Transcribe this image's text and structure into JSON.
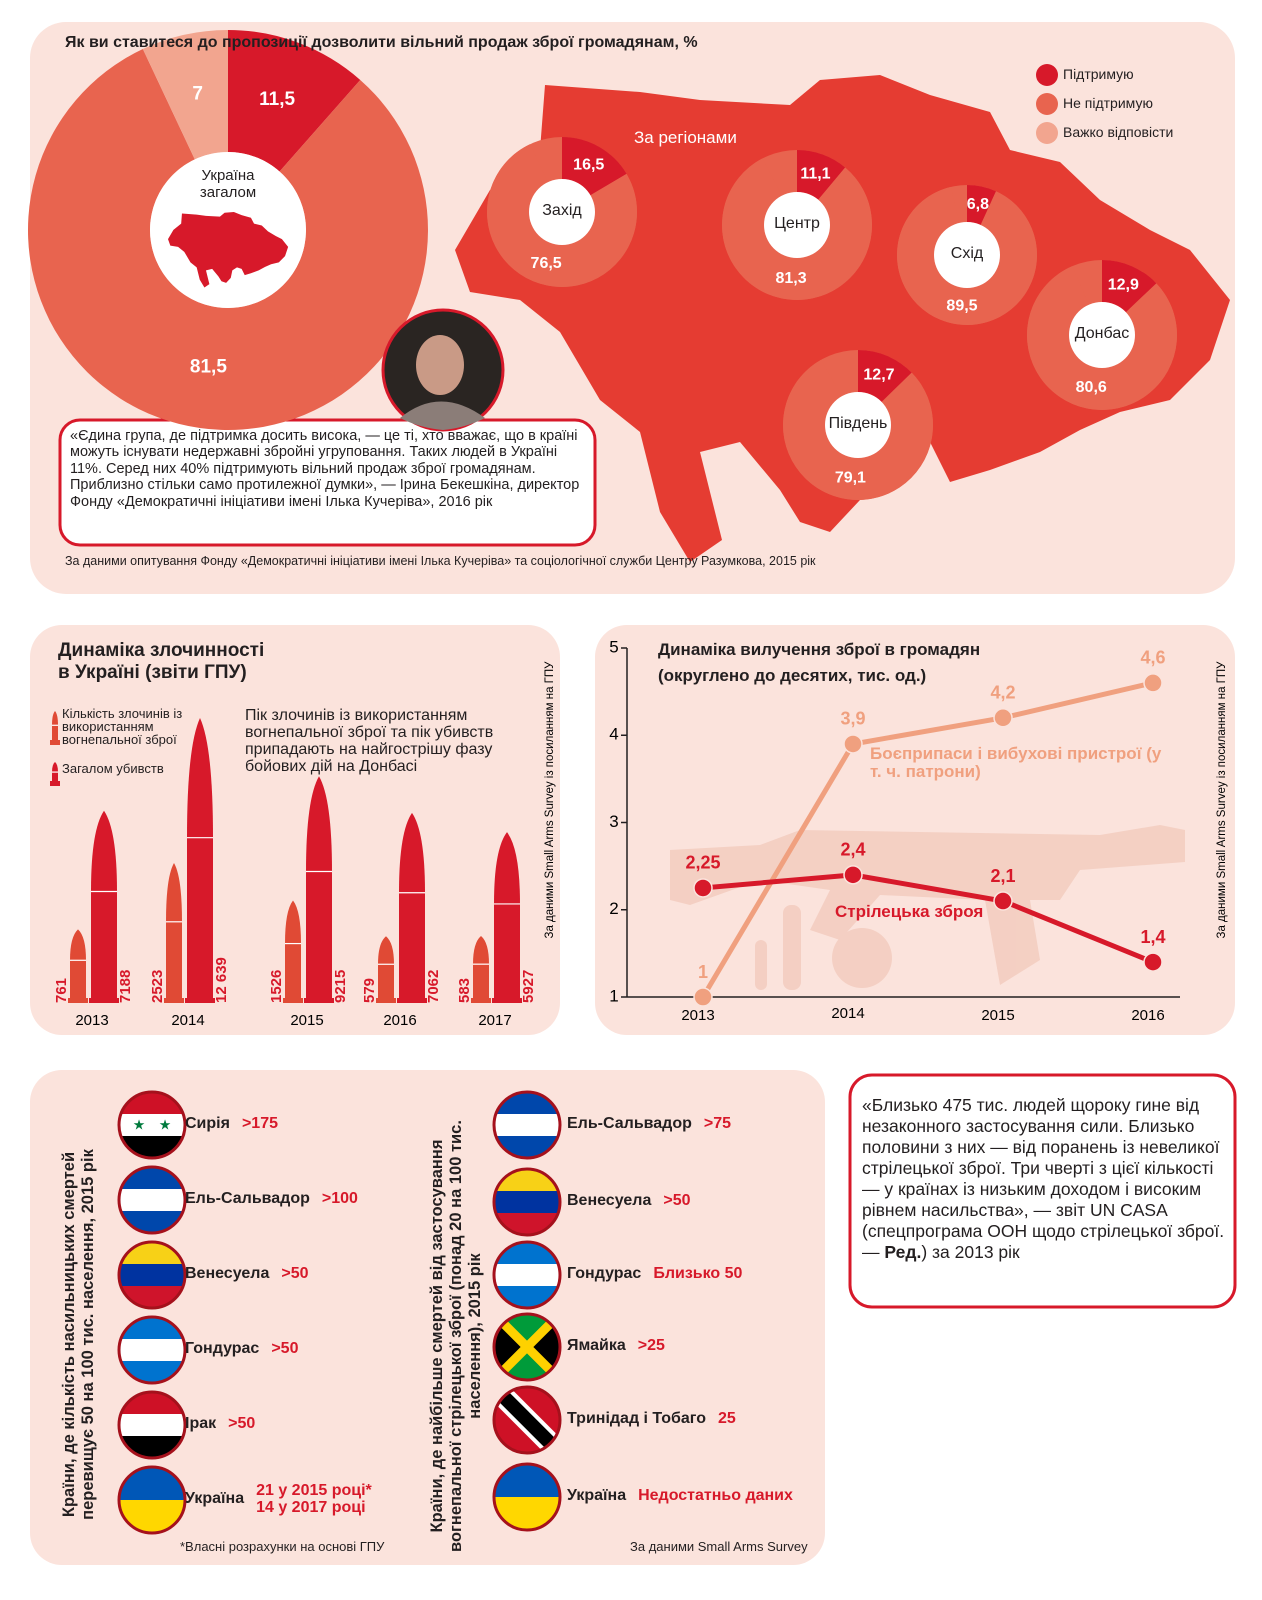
{
  "chart_data": [
    {
      "type": "donut",
      "title": "Як ви ставитеся до пропозиції дозволити вільний продаж зброї громадянам, %",
      "categories": [
        "Підтримую",
        "Не підтримую",
        "Важко відповісти"
      ],
      "colors": [
        "#d7192a",
        "#e8644f",
        "#f2a58f"
      ],
      "groups": [
        {
          "name": "Україна загалом",
          "values": [
            11.5,
            81.5,
            7
          ],
          "value_labels": [
            "11,5",
            "81,5",
            "7"
          ]
        }
      ],
      "note": "За даними опитування Фонду «Демократичні ініціативи імені Ілька Кучеріва» та соціологічної служби Центру Разумкова, 2015 рік"
    },
    {
      "type": "donut",
      "title": "За регіонами",
      "colors": [
        "#d7192a",
        "#e8644f"
      ],
      "groups": [
        {
          "name": "Захід",
          "values": [
            16.5,
            76.5
          ],
          "value_labels": [
            "16,5",
            "76,5"
          ]
        },
        {
          "name": "Центр",
          "values": [
            11.1,
            81.3
          ],
          "value_labels": [
            "11,1",
            "81,3"
          ]
        },
        {
          "name": "Схід",
          "values": [
            6.8,
            89.5
          ],
          "value_labels": [
            "6,8",
            "89,5"
          ]
        },
        {
          "name": "Донбас",
          "values": [
            12.9,
            80.6
          ],
          "value_labels": [
            "12,9",
            "80,6"
          ]
        },
        {
          "name": "Південь",
          "values": [
            12.7,
            79.1
          ],
          "value_labels": [
            "12,7",
            "79,1"
          ]
        }
      ]
    },
    {
      "type": "bullet",
      "title": "Динаміка злочинності в Україні (звіти ГПУ)",
      "categories": [
        "2013",
        "2014",
        "2015",
        "2016",
        "2017"
      ],
      "series": [
        {
          "name": "Кількість злочинів із використанням вогнепальної зброї",
          "color": "#e04a35",
          "values": [
            761,
            2523,
            1526,
            579,
            583
          ]
        },
        {
          "name": "Загалом убивств",
          "color": "#d7192a",
          "values": [
            7188,
            12639,
            9215,
            7062,
            5927
          ],
          "value_labels": [
            "7188",
            "12 639",
            "9215",
            "7062",
            "5927"
          ]
        }
      ],
      "annotation": "Пік злочинів із використанням вогнепальної зброї та пік убивств припадають на найгострішу фазу бойових дій на Донбасі",
      "source": "За даними  Small Arms Survey із посиланням на ГПУ"
    },
    {
      "type": "line",
      "title": "Динаміка вилучення зброї в громадян",
      "subtitle": "(округлено до десятих, тис. од.)",
      "categories": [
        "2013",
        "2014",
        "2015",
        "2016"
      ],
      "ylim": [
        1,
        5
      ],
      "yticks": [
        1,
        2,
        3,
        4,
        5
      ],
      "series": [
        {
          "name": "Боєприпаси і вибухові пристрої (у т. ч. патрони)",
          "color": "#f0a07f",
          "values": [
            1,
            3.9,
            4.2,
            4.6
          ],
          "value_labels": [
            "1",
            "3,9",
            "4,2",
            "4,6"
          ]
        },
        {
          "name": "Стрілецька зброя",
          "color": "#d7192a",
          "values": [
            2.25,
            2.4,
            2.1,
            1.4
          ],
          "value_labels": [
            "2,25",
            "2,4",
            "2,1",
            "1,4"
          ]
        }
      ],
      "source": "За даними  Small Arms Survey із посиланням на ГПУ"
    }
  ],
  "quote": {
    "text": "«Єдина група, де підтримка досить висока, — це ті, хто вважає, що в країні можуть існувати недержавні збройні угруповання. Таких людей в Україні 11%. Серед них 40% підтримують вільний продаж зброї громадянам. Приблизно стільки само протилежної думки», — Ірина Бекешкіна, директор Фонду «Демократичні ініціативи імені Ілька Кучеріва», 2016 рік"
  },
  "countries": [
    {
      "title": "Країни, де кількість насильницьких смертей перевищує 50 на 100 тис. населення, 2015 рік",
      "items": [
        {
          "name": "Сирія",
          "value": ">175"
        },
        {
          "name": "Ель-Сальвадор",
          "value": ">100"
        },
        {
          "name": "Венесуела",
          "value": ">50"
        },
        {
          "name": "Гондурас",
          "value": ">50"
        },
        {
          "name": "Ірак",
          "value": ">50"
        },
        {
          "name": "Україна",
          "value": "21 у 2015 році*\n14 у 2017 році"
        }
      ]
    },
    {
      "title": "Країни, де найбільше смертей від застосування вогнепальної стрілецької зброї (понад 20 на 100 тис. населення), 2015 рік",
      "items": [
        {
          "name": "Ель-Сальвадор",
          "value": ">75"
        },
        {
          "name": "Венесуела",
          "value": ">50"
        },
        {
          "name": "Гондурас",
          "value": "Близько 50"
        },
        {
          "name": "Ямайка",
          "value": ">25"
        },
        {
          "name": "Тринідад і Тобаго",
          "value": "25"
        },
        {
          "name": "Україна",
          "value": "Недостатньо даних"
        }
      ]
    }
  ],
  "footnote": "*Власні розрахунки на основі ГПУ",
  "countries_source": "За даними  Small Arms Survey",
  "quote2": {
    "text": "«Близько 475 тис. людей щороку гине від незаконного застосування сили. Близько половини з них — від поранень із невеликої стрілецької зброї. Три чверті з цієї кількості — у країнах із низьким доходом і високим рівнем насильства», — звіт UN CASA (спецпрограма ООН щодо стрілецької зброї. — ",
    "bold": "Ред.",
    "tail": ") за 2013 рік"
  }
}
